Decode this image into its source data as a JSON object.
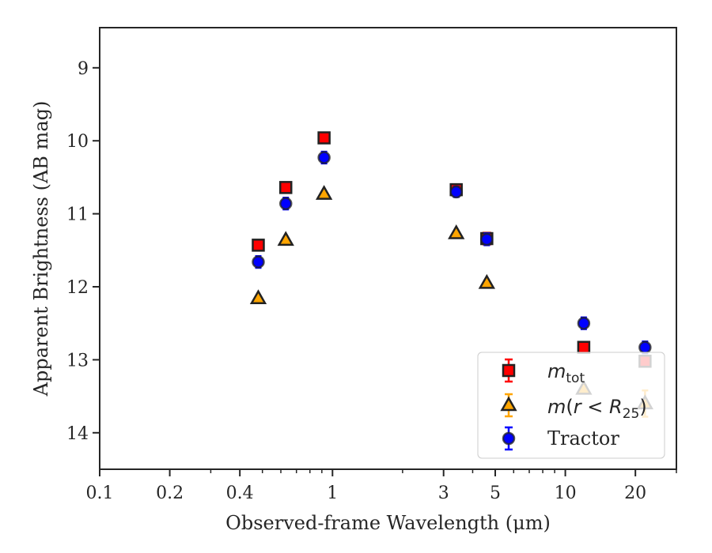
{
  "chart_data": {
    "type": "scatter",
    "xlabel": "Observed-frame Wavelength (μm)",
    "ylabel": "Apparent Brightness (AB mag)",
    "xscale": "log",
    "xlim": [
      0.1,
      30
    ],
    "ylim": [
      14.5,
      8.45
    ],
    "y_inverted": true,
    "x_ticks": [
      {
        "value": 0.1,
        "label": "0.1"
      },
      {
        "value": 0.2,
        "label": "0.2"
      },
      {
        "value": 0.4,
        "label": "0.4"
      },
      {
        "value": 1,
        "label": "1"
      },
      {
        "value": 3,
        "label": "3"
      },
      {
        "value": 5,
        "label": "5"
      },
      {
        "value": 10,
        "label": "10"
      },
      {
        "value": 20,
        "label": "20"
      }
    ],
    "y_ticks": [
      {
        "value": 9,
        "label": "9"
      },
      {
        "value": 10,
        "label": "10"
      },
      {
        "value": 11,
        "label": "11"
      },
      {
        "value": 12,
        "label": "12"
      },
      {
        "value": 13,
        "label": "13"
      },
      {
        "value": 14,
        "label": "14"
      }
    ],
    "legend_position": "lower-right",
    "series": [
      {
        "name": "m_tot",
        "marker": "square",
        "color": "#ff0000",
        "edge_color": "#222222",
        "points": [
          {
            "x": 0.48,
            "y": 11.43,
            "err": 0.05
          },
          {
            "x": 0.63,
            "y": 10.64,
            "err": 0.05
          },
          {
            "x": 0.92,
            "y": 9.96,
            "err": 0.05
          },
          {
            "x": 3.4,
            "y": 10.67,
            "err": 0.07
          },
          {
            "x": 4.6,
            "y": 11.34,
            "err": 0.08
          },
          {
            "x": 12.0,
            "y": 12.83,
            "err": 0.05
          },
          {
            "x": 22.0,
            "y": 13.02,
            "err": 0.06
          }
        ]
      },
      {
        "name": "m(r < R25)",
        "marker": "triangle",
        "color": "#ffa500",
        "edge_color": "#222222",
        "points": [
          {
            "x": 0.48,
            "y": 12.16,
            "err": 0.03
          },
          {
            "x": 0.63,
            "y": 11.36,
            "err": 0.03
          },
          {
            "x": 0.92,
            "y": 10.73,
            "err": 0.03
          },
          {
            "x": 3.4,
            "y": 11.27,
            "err": 0.03
          },
          {
            "x": 4.6,
            "y": 11.95,
            "err": 0.03
          },
          {
            "x": 12.0,
            "y": 13.4,
            "err": 0.05
          },
          {
            "x": 22.0,
            "y": 13.6,
            "err": 0.18
          }
        ]
      },
      {
        "name": "Tractor",
        "marker": "circle",
        "color": "#0000ff",
        "edge_color": "#222222",
        "points": [
          {
            "x": 0.48,
            "y": 11.66,
            "err": 0.08
          },
          {
            "x": 0.63,
            "y": 10.86,
            "err": 0.08
          },
          {
            "x": 0.92,
            "y": 10.23,
            "err": 0.08
          },
          {
            "x": 3.4,
            "y": 10.7,
            "err": 0.07
          },
          {
            "x": 4.6,
            "y": 11.35,
            "err": 0.08
          },
          {
            "x": 12.0,
            "y": 12.5,
            "err": 0.08
          },
          {
            "x": 22.0,
            "y": 12.83,
            "err": 0.08
          }
        ]
      }
    ]
  }
}
